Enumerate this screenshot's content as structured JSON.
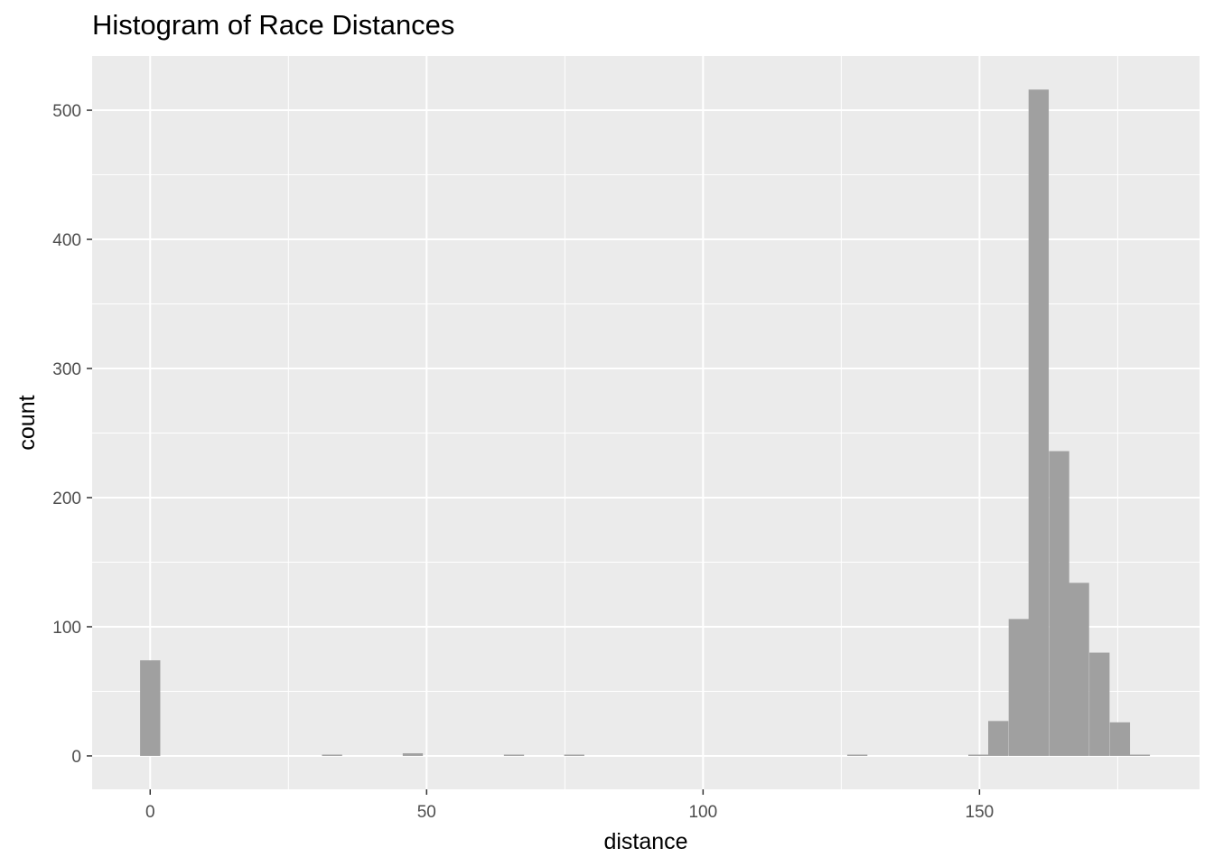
{
  "chart_data": {
    "type": "bar",
    "title": "Histogram of Race Distances",
    "xlabel": "distance",
    "ylabel": "count",
    "xlim": [
      -10.5,
      189.8
    ],
    "ylim": [
      -25.9,
      542
    ],
    "grid": true,
    "bin_width": 3.65,
    "x_ticks": [
      0,
      50,
      100,
      150
    ],
    "x_tick_labels": [
      "0",
      "50",
      "100",
      "150"
    ],
    "y_ticks": [
      0,
      100,
      200,
      300,
      400,
      500
    ],
    "y_tick_labels": [
      "0",
      "100",
      "200",
      "300",
      "400",
      "500"
    ],
    "bins": [
      {
        "x": 0,
        "count": 74
      },
      {
        "x": 32.9,
        "count": 1
      },
      {
        "x": 47.5,
        "count": 2
      },
      {
        "x": 65.8,
        "count": 1
      },
      {
        "x": 76.7,
        "count": 1
      },
      {
        "x": 127.9,
        "count": 1
      },
      {
        "x": 149.8,
        "count": 1
      },
      {
        "x": 153.4,
        "count": 27
      },
      {
        "x": 157.1,
        "count": 106
      },
      {
        "x": 160.7,
        "count": 516
      },
      {
        "x": 164.4,
        "count": 236
      },
      {
        "x": 168.0,
        "count": 134
      },
      {
        "x": 171.7,
        "count": 80
      },
      {
        "x": 175.4,
        "count": 26
      },
      {
        "x": 179.0,
        "count": 1
      }
    ],
    "colors": {
      "panel": "#ebebeb",
      "grid_major": "#ffffff",
      "bar_fill": "#a0a0a0",
      "text": "#4d4d4d"
    }
  }
}
